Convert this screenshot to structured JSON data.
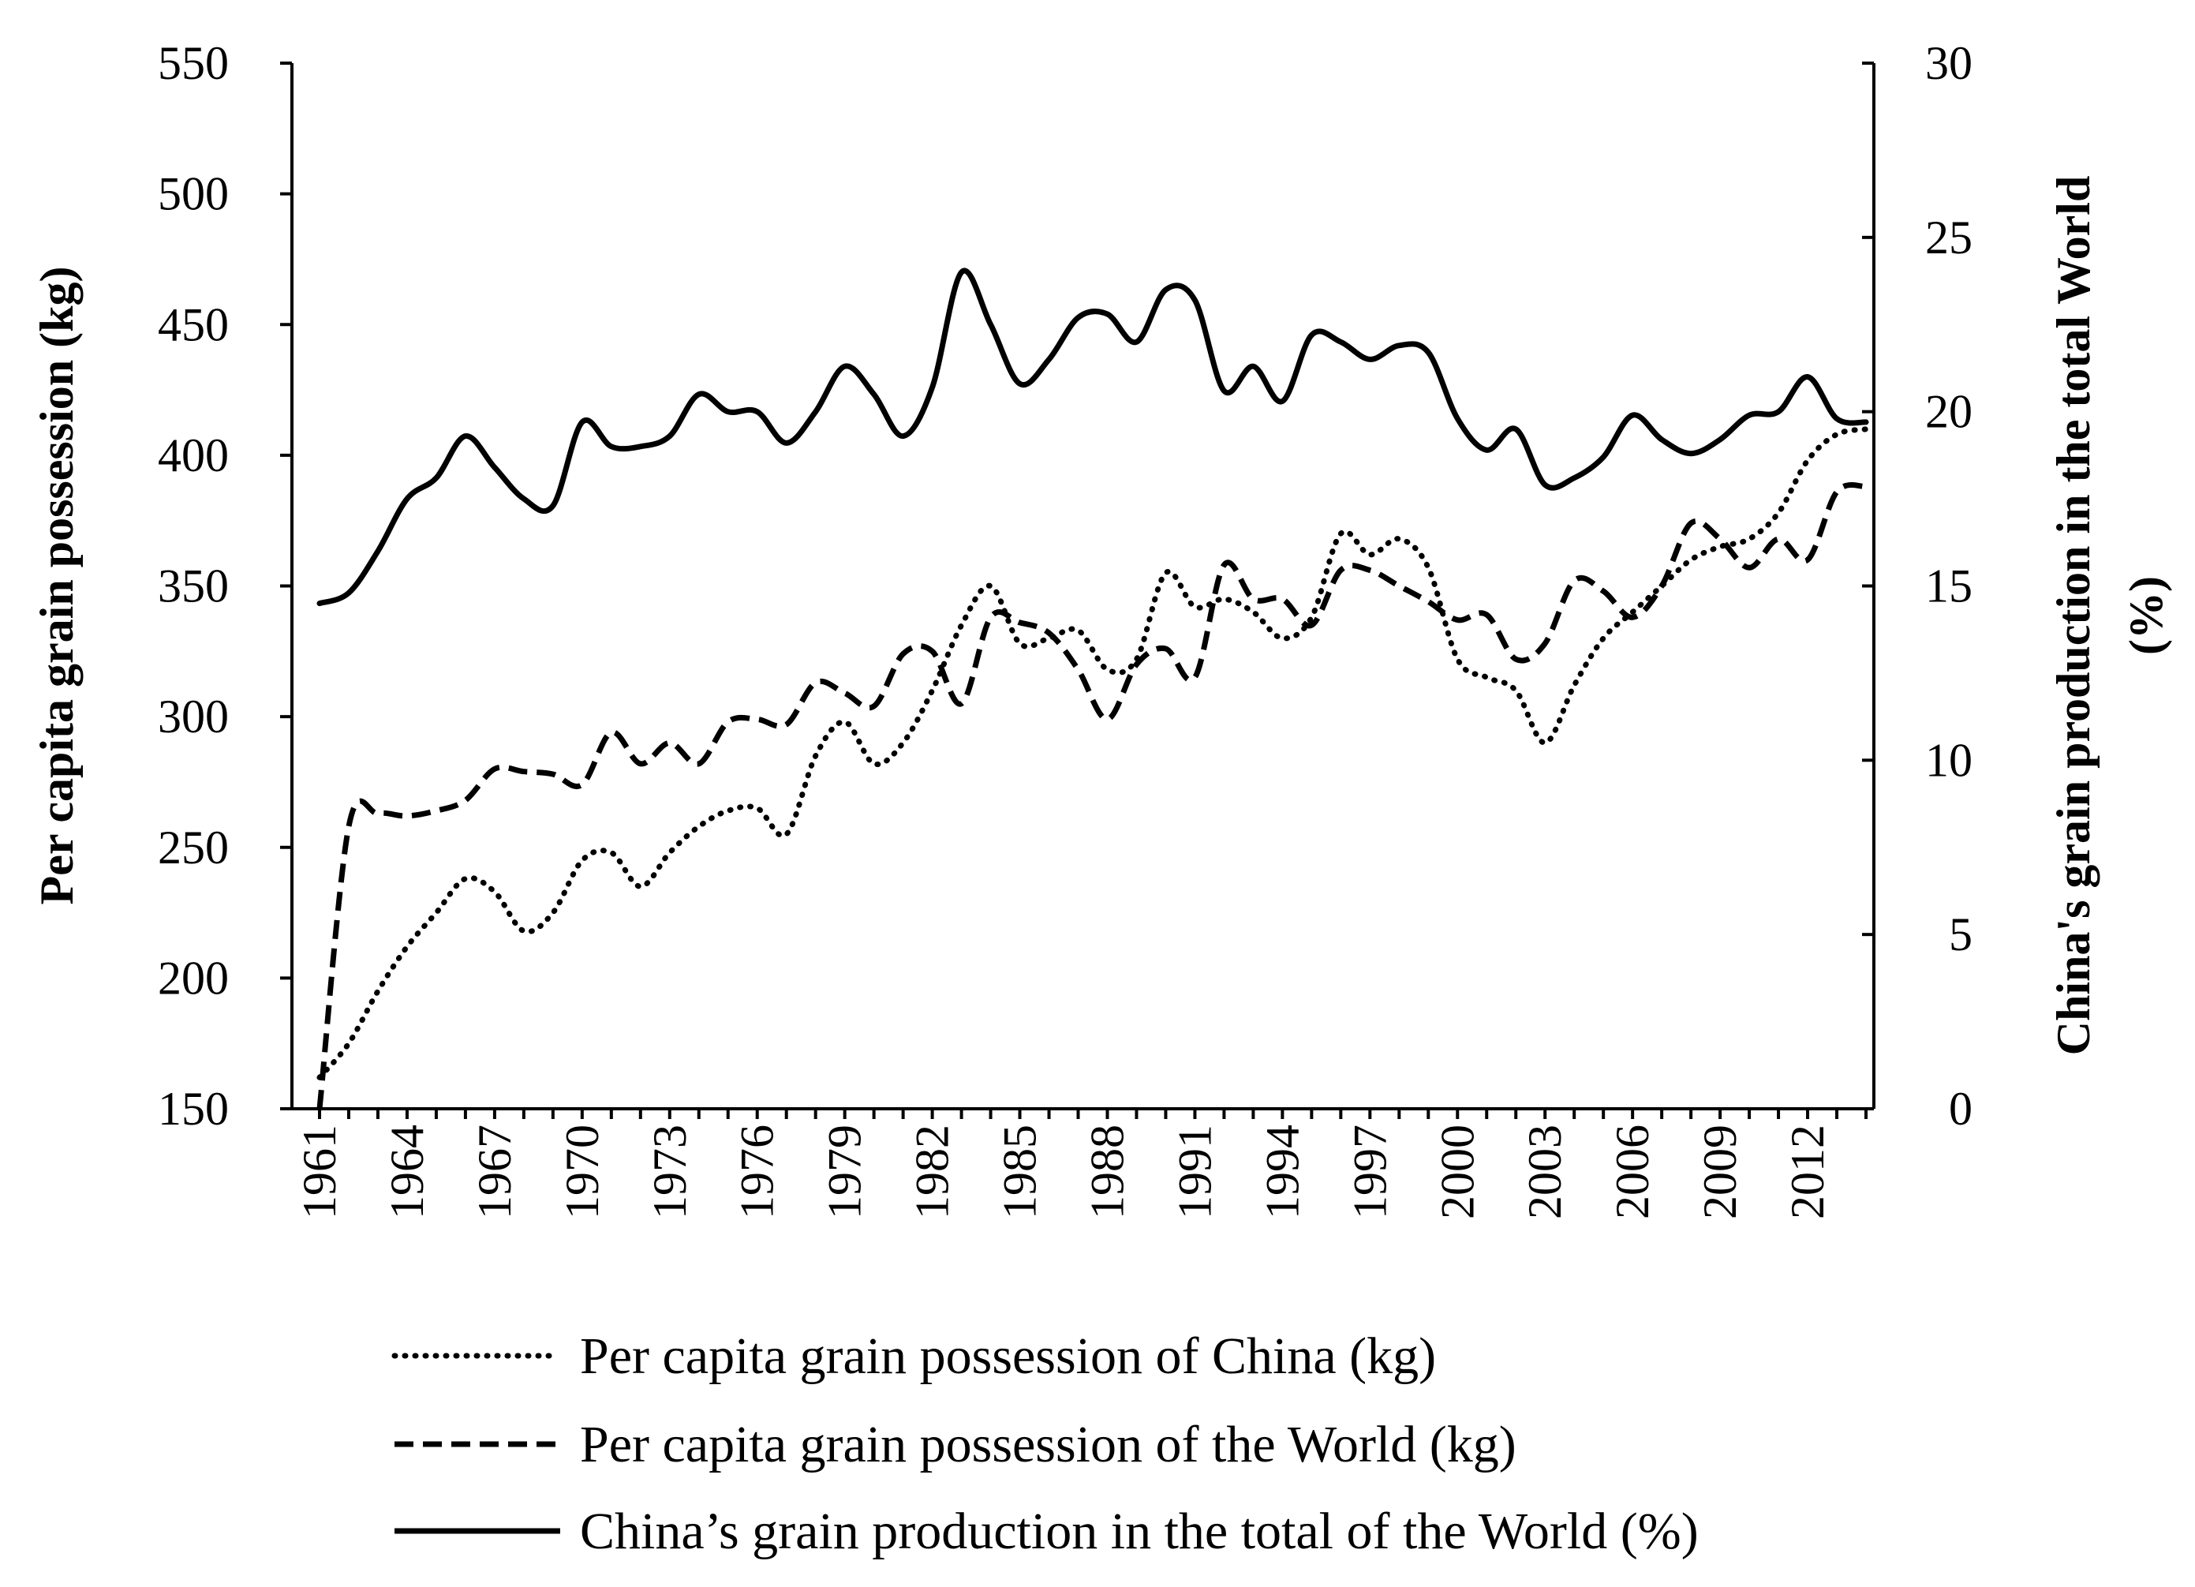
{
  "chart_data": {
    "type": "line",
    "title": "",
    "xlabel": "",
    "ylabel": "Per capita grain possession (kg)",
    "ylabel_right_line1": "China's grain production in the total World",
    "ylabel_right_line2": "(%)",
    "ylim": [
      150,
      550
    ],
    "ylim_right": [
      0,
      30
    ],
    "yticks": [
      "550",
      "500",
      "450",
      "400",
      "350",
      "300",
      "250",
      "200",
      "150"
    ],
    "yticks_right": [
      "30",
      "25",
      "20",
      "15",
      "10",
      "5",
      "0"
    ],
    "xticks": [
      "1961",
      "1964",
      "1967",
      "1970",
      "1973",
      "1976",
      "1979",
      "1982",
      "1985",
      "1988",
      "1991",
      "1994",
      "1997",
      "2000",
      "2003",
      "2006",
      "2009",
      "2012"
    ],
    "x": [
      1961,
      1962,
      1963,
      1964,
      1965,
      1966,
      1967,
      1968,
      1969,
      1970,
      1971,
      1972,
      1973,
      1974,
      1975,
      1976,
      1977,
      1978,
      1979,
      1980,
      1981,
      1982,
      1983,
      1984,
      1985,
      1986,
      1987,
      1988,
      1989,
      1990,
      1991,
      1992,
      1993,
      1994,
      1995,
      1996,
      1997,
      1998,
      1999,
      2000,
      2001,
      2002,
      2003,
      2004,
      2005,
      2006,
      2007,
      2008,
      2009,
      2010,
      2011,
      2012,
      2013,
      2014
    ],
    "series": [
      {
        "name": "Per capita grain possession of China (kg)",
        "style": "dotted",
        "axis": "left",
        "values": [
          162,
          175,
          195,
          212,
          225,
          238,
          233,
          218,
          225,
          245,
          248,
          235,
          248,
          258,
          264,
          265,
          255,
          285,
          298,
          282,
          290,
          310,
          335,
          350,
          328,
          330,
          333,
          318,
          322,
          355,
          342,
          345,
          340,
          330,
          338,
          370,
          362,
          368,
          357,
          322,
          315,
          310,
          290,
          312,
          330,
          340,
          350,
          360,
          365,
          368,
          378,
          398,
          408,
          410
        ]
      },
      {
        "name": "Per capita grain possession of the World (kg)",
        "style": "dashed",
        "axis": "left",
        "values": [
          150,
          258,
          263,
          262,
          264,
          268,
          280,
          279,
          278,
          274,
          294,
          282,
          290,
          282,
          298,
          299,
          297,
          313,
          309,
          304,
          324,
          325,
          305,
          338,
          336,
          332,
          318,
          299,
          320,
          326,
          315,
          358,
          345,
          345,
          335,
          356,
          356,
          350,
          344,
          337,
          339,
          322,
          328,
          352,
          348,
          338,
          350,
          374,
          368,
          357,
          368,
          360,
          386,
          388
        ]
      },
      {
        "name": "China’s grain production in the total of the World (%)",
        "style": "solid",
        "axis": "right",
        "values": [
          14.5,
          14.8,
          16.0,
          17.5,
          18.1,
          19.3,
          18.4,
          17.5,
          17.3,
          19.7,
          19.0,
          19.0,
          19.3,
          20.5,
          20.0,
          20.0,
          19.1,
          20.0,
          21.3,
          20.5,
          19.3,
          20.7,
          24.0,
          22.5,
          20.8,
          21.5,
          22.7,
          22.8,
          22.0,
          23.5,
          23.2,
          20.6,
          21.3,
          20.3,
          22.2,
          22.0,
          21.5,
          21.9,
          21.7,
          19.8,
          18.9,
          19.5,
          17.9,
          18.1,
          18.7,
          19.9,
          19.2,
          18.8,
          19.2,
          19.9,
          20.0,
          21.0,
          19.8,
          19.7
        ]
      }
    ],
    "legend": [
      "Per capita grain possession of China (kg)",
      "Per capita grain possession of the World (kg)",
      "China’s grain production in the total of the World (%)"
    ],
    "legend_position": "bottom",
    "grid": false
  }
}
